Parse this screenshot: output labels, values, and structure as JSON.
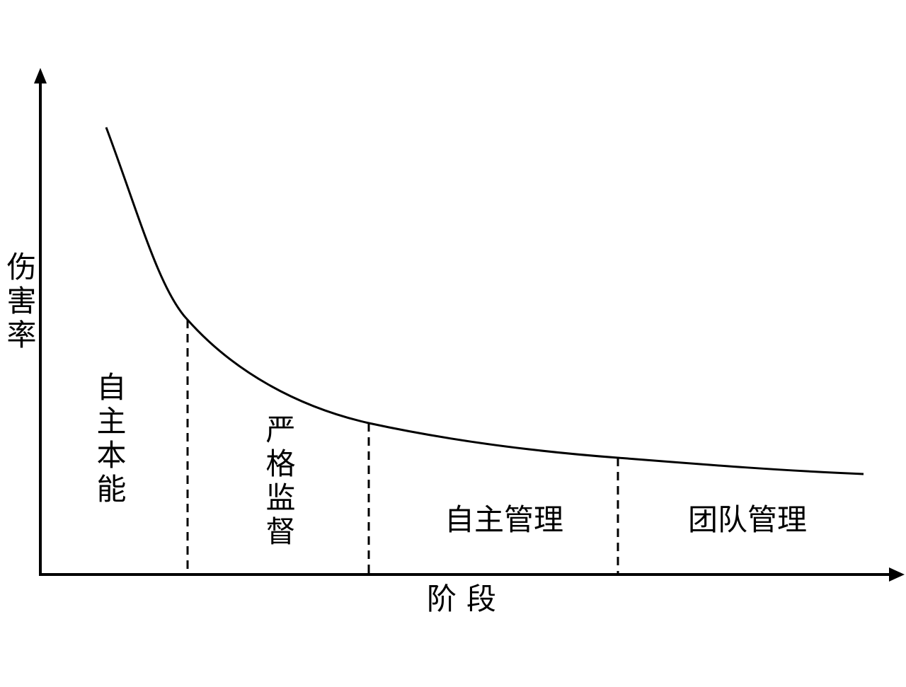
{
  "y_axis": {
    "label": "伤害率"
  },
  "x_axis": {
    "label": "阶段"
  },
  "stages": [
    {
      "label": "自主本能"
    },
    {
      "label": "严格监督"
    },
    {
      "label": "自主管理"
    },
    {
      "label": "团队管理"
    }
  ]
}
